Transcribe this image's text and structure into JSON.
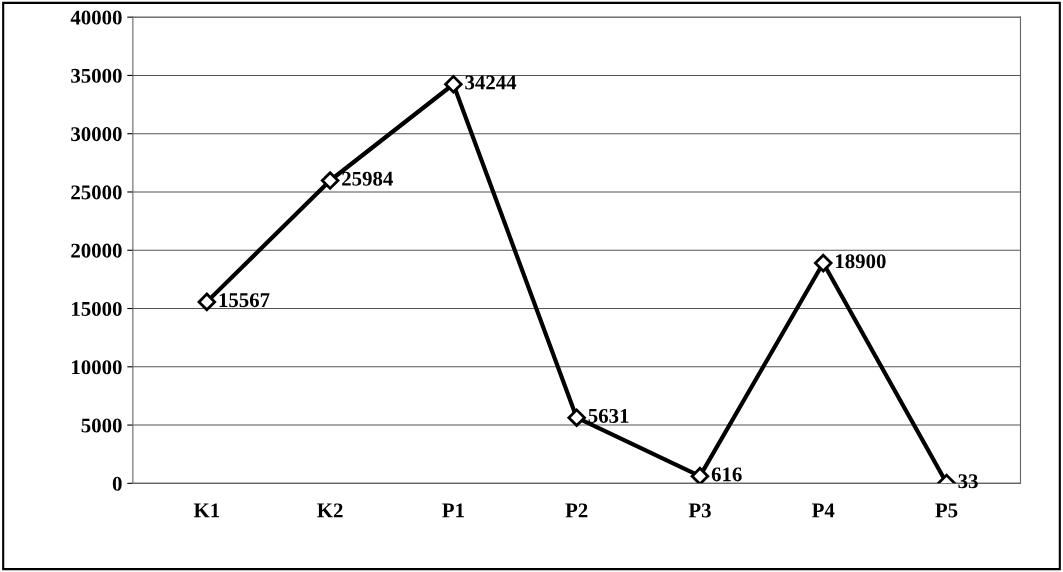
{
  "chart_data": {
    "type": "line",
    "categories": [
      "K1",
      "K2",
      "P1",
      "P2",
      "P3",
      "P4",
      "P5"
    ],
    "values": [
      15567,
      25984,
      34244,
      5631,
      616,
      18900,
      33
    ],
    "color": "#000000",
    "marker": "diamond",
    "line_style": "solid",
    "data_labels": true,
    "ylim": [
      0,
      40000
    ],
    "yticks": [
      0,
      5000,
      10000,
      15000,
      20000,
      25000,
      30000,
      35000,
      40000
    ],
    "grid": "y"
  }
}
